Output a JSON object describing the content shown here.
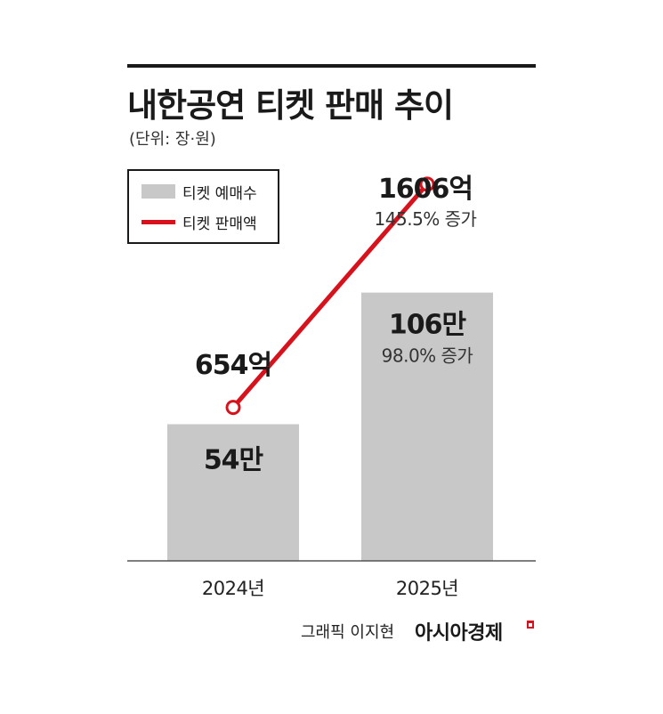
{
  "header": {
    "title": "내한공연 티켓 판매 추이",
    "unit_note": "(단위: 장·원)"
  },
  "legend": {
    "bar_label": "티켓 예매수",
    "line_label": "티켓 판매액"
  },
  "colors": {
    "bar": "#c8c8c9",
    "line": "#d7121c",
    "text": "#1a1a1a"
  },
  "chart_data": {
    "type": "bar+line",
    "title": "내한공연 티켓 판매 추이",
    "categories": [
      "2024년",
      "2025년"
    ],
    "series": [
      {
        "name": "티켓 예매수",
        "kind": "bar",
        "values": [
          540000,
          1060000
        ],
        "value_labels": [
          "54만",
          "106만"
        ],
        "change_labels": [
          "",
          "98.0% 증가"
        ]
      },
      {
        "name": "티켓 판매액",
        "kind": "line",
        "values": [
          654,
          1606
        ],
        "value_labels": [
          "654억",
          "1606억"
        ],
        "change_labels": [
          "",
          "145.5% 증가"
        ]
      }
    ],
    "ylim_bars": [
      0,
      1400000
    ],
    "ylim_line": [
      0,
      2000
    ],
    "grid": false,
    "legend_position": "top-left"
  },
  "footer": {
    "credit": "그래픽 이지현",
    "brand": "아시아경제"
  }
}
